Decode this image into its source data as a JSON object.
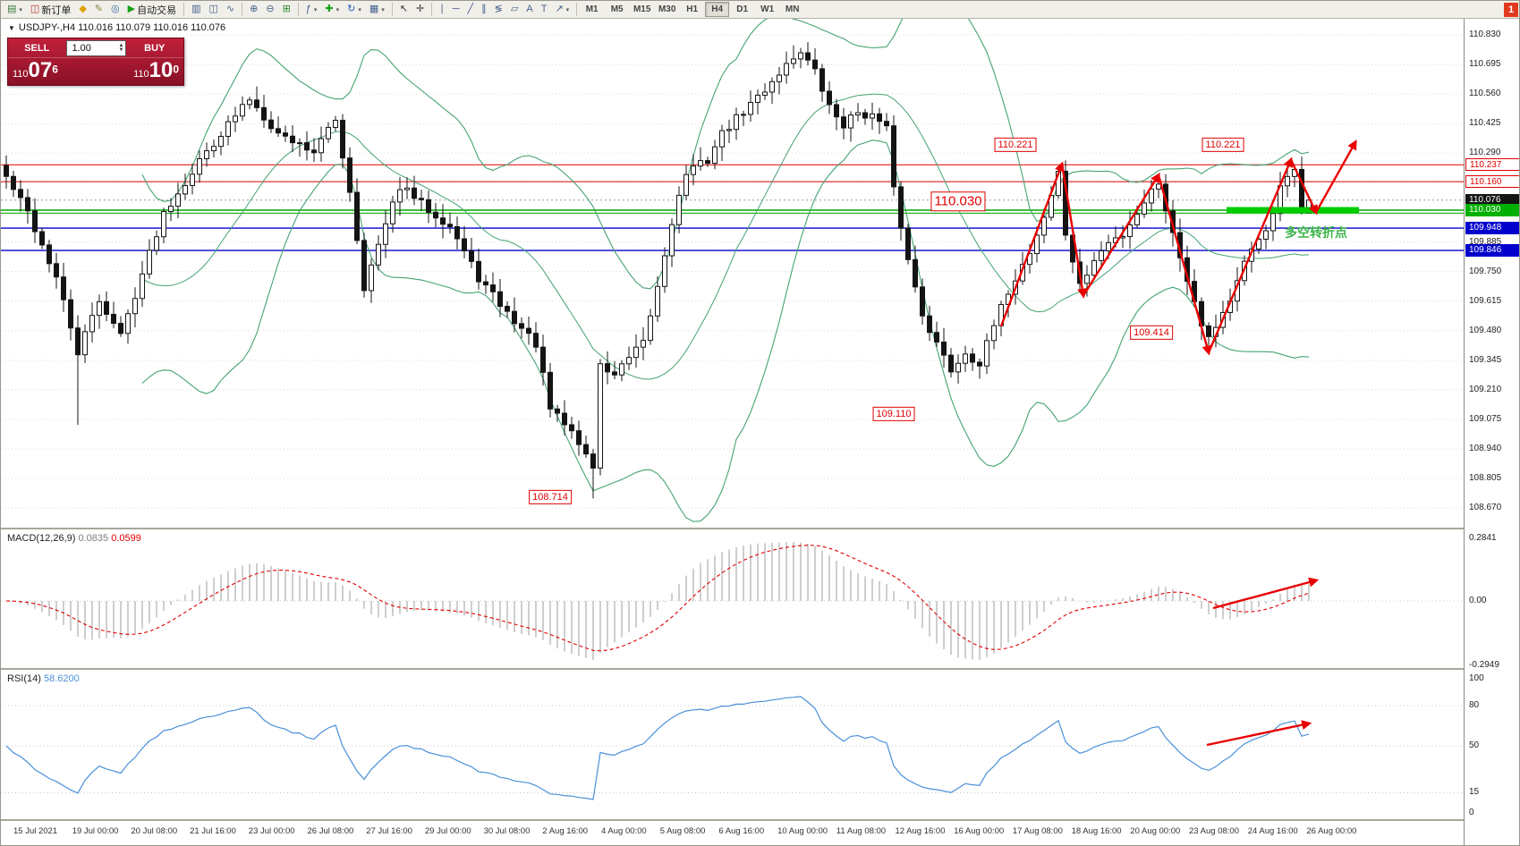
{
  "colors": {
    "up_candle": "#ffffff",
    "down_candle": "#141414",
    "candle_border": "#141414",
    "bollinger": "#45a371",
    "grid": "#dcdcdc",
    "macd_histogram": "#b9b9b9",
    "macd_signal": "#e00000",
    "rsi_line": "#4a90d9",
    "trend_arrow": "#e80000",
    "highlight_green": "#00cc00"
  },
  "toolbar": {
    "items": [
      {
        "name": "new-chart-icon",
        "glyph": "▤",
        "color": "#3c7a3c",
        "dropdown": true
      },
      {
        "name": "new-order-button",
        "glyph": "◫",
        "color": "#b03030",
        "label": "新订单"
      },
      {
        "name": "guide-icon",
        "glyph": "◆",
        "color": "#e0a000"
      },
      {
        "name": "metaeditor-icon",
        "glyph": "✎",
        "color": "#888840"
      },
      {
        "name": "history-center-icon",
        "glyph": "◎",
        "color": "#3a6ea5"
      },
      {
        "name": "autotrading-button",
        "glyph": "▶",
        "color": "#18a018",
        "label": "自动交易"
      },
      {
        "sep": true
      },
      {
        "name": "bar-chart-icon",
        "glyph": "▥"
      },
      {
        "name": "candlestick-chart-icon",
        "glyph": "◫"
      },
      {
        "name": "line-chart-icon",
        "glyph": "∿"
      },
      {
        "sep": true
      },
      {
        "name": "zoom-in-icon",
        "glyph": "⊕"
      },
      {
        "name": "zoom-out-icon",
        "glyph": "⊖"
      },
      {
        "name": "tile-windows-icon",
        "glyph": "⊞",
        "color": "#2d8a2d"
      },
      {
        "sep": true
      },
      {
        "name": "indicator-list-icon",
        "glyph": "ƒ",
        "dropdown": true
      },
      {
        "name": "add-indicator-icon",
        "glyph": "✚",
        "color": "#18a018",
        "dropdown": true
      },
      {
        "name": "refresh-icon",
        "glyph": "↻",
        "color": "#2060c0",
        "dropdown": true
      },
      {
        "name": "chart-template-icon",
        "glyph": "▦",
        "dropdown": true
      },
      {
        "sep": true
      },
      {
        "name": "cursor-icon",
        "glyph": "↖",
        "color": "#333333"
      },
      {
        "name": "crosshair-icon",
        "glyph": "✛",
        "color": "#333333"
      },
      {
        "sep": true
      },
      {
        "name": "vertical-line-icon",
        "glyph": "∣"
      },
      {
        "name": "horizontal-line-icon",
        "glyph": "─"
      },
      {
        "name": "trendline-icon",
        "glyph": "╱"
      },
      {
        "name": "channel-icon",
        "glyph": "∥"
      },
      {
        "name": "fibonacci-icon",
        "glyph": "≶"
      },
      {
        "name": "shapes-icon",
        "glyph": "▱"
      },
      {
        "name": "text-icon",
        "glyph": "A"
      },
      {
        "name": "label-icon",
        "glyph": "T"
      },
      {
        "name": "arrows-tool-icon",
        "glyph": "↗",
        "dropdown": true
      },
      {
        "sep": true
      }
    ],
    "timeframes": [
      "M1",
      "M5",
      "M15",
      "M30",
      "H1",
      "H4",
      "D1",
      "W1",
      "MN"
    ],
    "active_timeframe": "H4",
    "notification_badge": "1"
  },
  "chart": {
    "symbol_info": "USDJPY-,H4 110.016 110.079 110.016 110.076",
    "trade_widget": {
      "sell_label": "SELL",
      "buy_label": "BUY",
      "volume": "1.00",
      "sell_price": {
        "prefix": "110",
        "big": "07",
        "sup": "6"
      },
      "buy_price": {
        "prefix": "110",
        "big": "10",
        "sup": "0"
      }
    },
    "price_scale_ticks": [
      "110.830",
      "110.695",
      "110.560",
      "110.425",
      "110.290",
      "110.155",
      "110.020",
      "109.885",
      "109.750",
      "109.615",
      "109.480",
      "109.345",
      "109.210",
      "109.075",
      "108.940",
      "108.805",
      "108.670"
    ],
    "price_tags": [
      {
        "text": "110.237",
        "style": "red-outline",
        "p": 110.237
      },
      {
        "text": "110.160",
        "style": "red-outline",
        "p": 110.16
      },
      {
        "text": "110.076",
        "style": "black",
        "p": 110.076
      },
      {
        "text": "110.030",
        "style": "green",
        "p": 110.03
      },
      {
        "text": "109.948",
        "style": "blue",
        "p": 109.948
      },
      {
        "text": "109.846",
        "style": "blue",
        "p": 109.846
      }
    ],
    "hlines": [
      {
        "p": 110.237,
        "color": "#e00000",
        "w": 1
      },
      {
        "p": 110.16,
        "color": "#e00000",
        "w": 1
      },
      {
        "p": 110.076,
        "color": "#9a9a9a",
        "w": 1,
        "dash": "2,3"
      },
      {
        "p": 110.03,
        "color": "#00a800",
        "w": 1.4
      },
      {
        "p": 110.016,
        "color": "#00a800",
        "w": 1
      },
      {
        "p": 109.948,
        "color": "#0000cc",
        "w": 1.4
      },
      {
        "p": 109.846,
        "color": "#0000cc",
        "w": 1.4
      }
    ],
    "annotations": [
      {
        "text": "110.221",
        "i": 141,
        "p": 110.33,
        "size": 11
      },
      {
        "text": "110.221",
        "i": 170,
        "p": 110.33,
        "size": 11
      },
      {
        "text": "110.030",
        "i": 133,
        "p": 110.07,
        "size": 15
      },
      {
        "text": "109.414",
        "i": 160,
        "p": 109.47,
        "size": 11
      },
      {
        "text": "109.110",
        "i": 124,
        "p": 109.1,
        "size": 11
      },
      {
        "text": "108.714",
        "i": 76,
        "p": 108.72,
        "size": 11
      }
    ],
    "note_text": {
      "text": "多空转折点",
      "i": 183,
      "p": 109.93,
      "color": "#3cb54a"
    },
    "time_ticks": [
      "15 Jul 2021",
      "19 Jul 00:00",
      "20 Jul 08:00",
      "21 Jul 16:00",
      "23 Jul 00:00",
      "26 Jul 08:00",
      "27 Jul 16:00",
      "29 Jul 00:00",
      "30 Jul 08:00",
      "2 Aug 16:00",
      "4 Aug 00:00",
      "5 Aug 08:00",
      "6 Aug 16:00",
      "10 Aug 00:00",
      "11 Aug 08:00",
      "12 Aug 16:00",
      "16 Aug 00:00",
      "17 Aug 08:00",
      "18 Aug 16:00",
      "20 Aug 00:00",
      "23 Aug 08:00",
      "24 Aug 16:00",
      "26 Aug 00:00"
    ]
  },
  "macd": {
    "label": "MACD(12,26,9)",
    "value_main": "0.0835",
    "value_signal": "0.0599",
    "scale": [
      "0.2841",
      "0.00",
      "-0.2949"
    ]
  },
  "rsi": {
    "label": "RSI(14)",
    "value": "58.6200",
    "scale": [
      "100",
      "80",
      "50",
      "15",
      "0"
    ],
    "levels": [
      80,
      50,
      15
    ]
  },
  "chart_data": {
    "type": "candlestick",
    "symbol": "USDJPY-",
    "timeframe": "H4",
    "current_ohlc": {
      "open": 110.016,
      "high": 110.079,
      "low": 110.016,
      "close": 110.076
    },
    "bid": 110.076,
    "ask": 110.1,
    "candle_count": 183,
    "x_range": [
      "15 Jul 2021",
      "26 Aug 00:00"
    ],
    "y_range": [
      108.67,
      110.83
    ],
    "price_waypoints": [
      [
        0,
        110.18
      ],
      [
        3,
        110.02
      ],
      [
        7,
        109.72
      ],
      [
        10,
        109.38
      ],
      [
        13,
        109.62
      ],
      [
        16,
        109.46
      ],
      [
        22,
        110.02
      ],
      [
        28,
        110.3
      ],
      [
        34,
        110.54
      ],
      [
        38,
        110.38
      ],
      [
        43,
        110.3
      ],
      [
        46,
        110.44
      ],
      [
        48,
        110.12
      ],
      [
        50,
        109.68
      ],
      [
        53,
        109.96
      ],
      [
        55,
        110.14
      ],
      [
        58,
        110.06
      ],
      [
        62,
        109.96
      ],
      [
        66,
        109.72
      ],
      [
        70,
        109.56
      ],
      [
        74,
        109.42
      ],
      [
        76,
        109.12
      ],
      [
        79,
        109.02
      ],
      [
        82,
        108.86
      ],
      [
        83,
        109.32
      ],
      [
        85,
        109.28
      ],
      [
        89,
        109.42
      ],
      [
        91,
        109.68
      ],
      [
        93,
        109.98
      ],
      [
        95,
        110.2
      ],
      [
        98,
        110.26
      ],
      [
        100,
        110.38
      ],
      [
        103,
        110.48
      ],
      [
        106,
        110.58
      ],
      [
        108,
        110.66
      ],
      [
        111,
        110.76
      ],
      [
        113,
        110.66
      ],
      [
        115,
        110.5
      ],
      [
        117,
        110.42
      ],
      [
        119,
        110.48
      ],
      [
        121,
        110.46
      ],
      [
        123,
        110.4
      ],
      [
        124,
        110.12
      ],
      [
        126,
        109.8
      ],
      [
        128,
        109.56
      ],
      [
        130,
        109.42
      ],
      [
        132,
        109.3
      ],
      [
        134,
        109.38
      ],
      [
        136,
        109.33
      ],
      [
        138,
        109.5
      ],
      [
        140,
        109.66
      ],
      [
        143,
        109.84
      ],
      [
        145,
        110.0
      ],
      [
        147,
        110.2
      ],
      [
        148,
        109.92
      ],
      [
        150,
        109.68
      ],
      [
        152,
        109.8
      ],
      [
        154,
        109.88
      ],
      [
        156,
        109.92
      ],
      [
        158,
        110.02
      ],
      [
        160,
        110.12
      ],
      [
        161,
        110.16
      ],
      [
        163,
        109.92
      ],
      [
        165,
        109.72
      ],
      [
        167,
        109.52
      ],
      [
        168,
        109.45
      ],
      [
        171,
        109.62
      ],
      [
        173,
        109.78
      ],
      [
        175,
        109.9
      ],
      [
        177,
        110.0
      ],
      [
        178,
        110.14
      ],
      [
        180,
        110.2
      ],
      [
        181,
        110.04
      ],
      [
        182,
        110.08
      ]
    ],
    "extreme_overrides": [
      {
        "i": 10,
        "low": 109.05
      },
      {
        "i": 82,
        "low": 108.714
      },
      {
        "i": 147,
        "high": 110.221
      },
      {
        "i": 168,
        "low": 109.414
      },
      {
        "i": 180,
        "high": 110.237
      },
      {
        "i": 182,
        "open": 110.016,
        "high": 110.079,
        "low": 110.016,
        "close": 110.076
      }
    ],
    "levels": {
      "resistance": [
        110.237,
        110.221,
        110.16
      ],
      "pivot": 110.03,
      "support": [
        109.948,
        109.846,
        109.414,
        109.11,
        108.714
      ]
    },
    "trend_arrows": [
      [
        139,
        109.5
      ],
      [
        147.5,
        110.24
      ],
      [
        150.5,
        109.64
      ],
      [
        161,
        110.19
      ],
      [
        168,
        109.38
      ],
      [
        179.5,
        110.26
      ],
      [
        183,
        110.02
      ],
      [
        188.5,
        110.34
      ]
    ],
    "highlight_bar": {
      "i1": 170.5,
      "i2": 189,
      "p": 110.03
    },
    "macd_arrow": [
      [
        1355,
        88
      ],
      [
        1470,
        57
      ]
    ],
    "rsi_arrow": [
      [
        1348,
        84
      ],
      [
        1462,
        60
      ]
    ],
    "indicators": [
      {
        "name": "Bollinger Bands",
        "period": 20,
        "deviation": 2
      },
      {
        "name": "MACD",
        "fast": 12,
        "slow": 26,
        "signal": 9,
        "values": [
          0.0835,
          0.0599
        ],
        "range": [
          -0.2949,
          0.2841
        ]
      },
      {
        "name": "RSI",
        "period": 14,
        "value": 58.62,
        "range": [
          0,
          100
        ]
      }
    ]
  }
}
